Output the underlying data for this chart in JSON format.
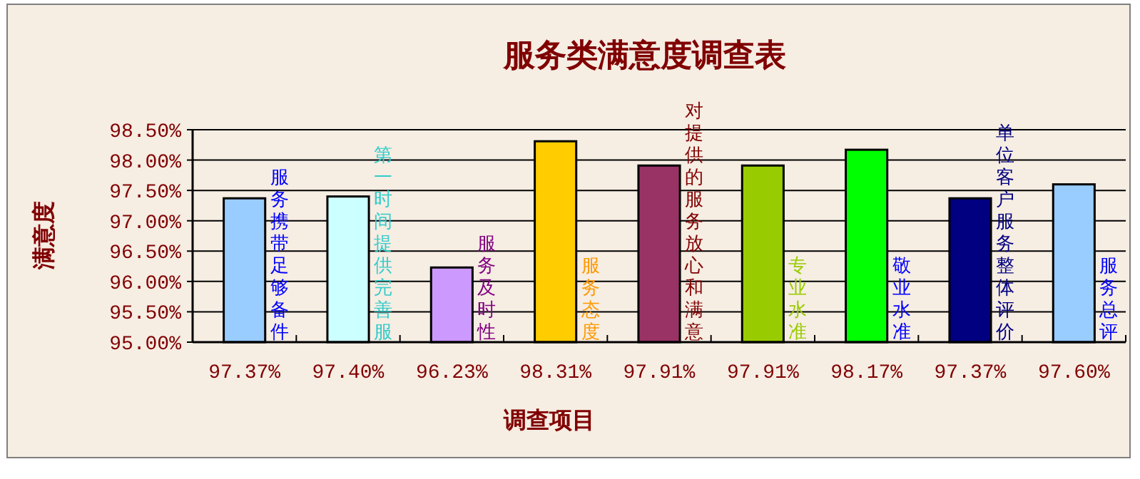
{
  "chart_data": {
    "type": "bar",
    "title": "服务类满意度调查表",
    "xlabel": "调查项目",
    "ylabel": "满意度",
    "categories": [
      "97.37%",
      "97.40%",
      "96.23%",
      "98.31%",
      "97.91%",
      "97.91%",
      "98.17%",
      "97.37%",
      "97.60%"
    ],
    "values": [
      97.37,
      97.4,
      96.23,
      98.31,
      97.91,
      97.91,
      98.17,
      97.37,
      97.6
    ],
    "colors": [
      "#99ccff",
      "#ccffff",
      "#cc99ff",
      "#ffcc00",
      "#993366",
      "#99cc00",
      "#00ff00",
      "#000080",
      "#99ccff"
    ],
    "ylim": [
      95,
      98.5
    ],
    "yticks": [
      {
        "value": 95,
        "label": "95.00%"
      },
      {
        "value": 95.5,
        "label": "95.50%"
      },
      {
        "value": 96,
        "label": "96.00%"
      },
      {
        "value": 96.5,
        "label": "96.50%"
      },
      {
        "value": 97,
        "label": "97.00%"
      },
      {
        "value": 97.5,
        "label": "97.50%"
      },
      {
        "value": 98,
        "label": "98.00%"
      },
      {
        "value": 98.5,
        "label": "98.50%"
      }
    ],
    "grid": "y",
    "annotations": [
      "服务携带足够备件",
      "第一时间提供完善服",
      "服务及时性",
      "服务态度",
      "对提供的服务放心和满意",
      "专业水准",
      "敬业水准",
      "单位客户服务整体评价",
      "服务总评"
    ]
  }
}
